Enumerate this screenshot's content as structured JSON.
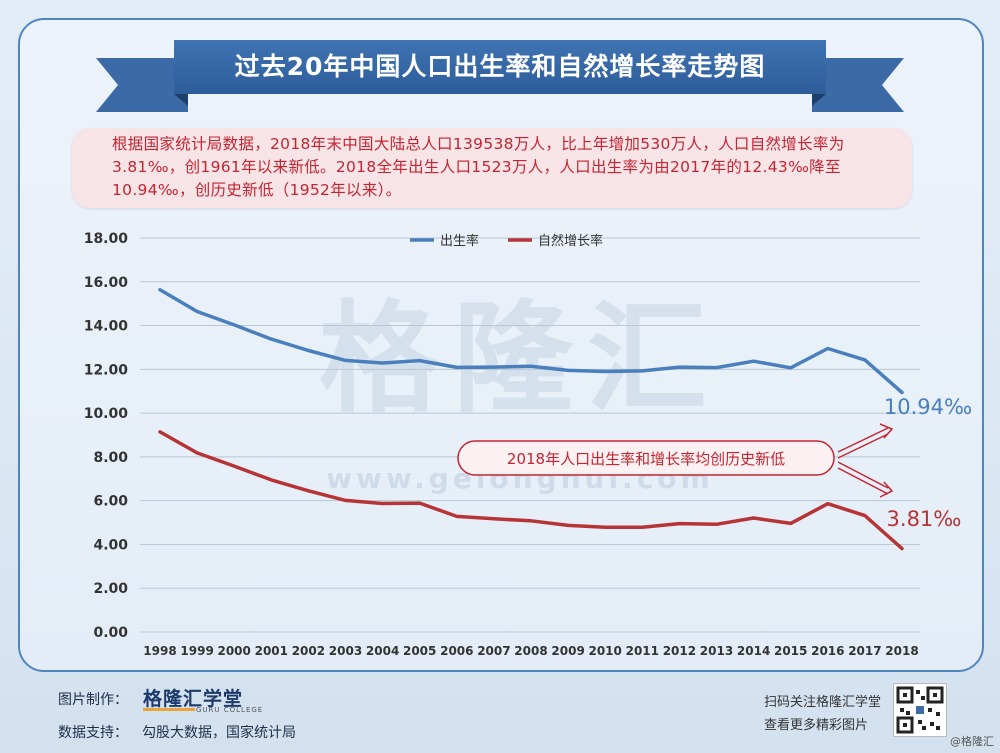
{
  "title": "过去20年中国人口出生率和自然增长率走势图",
  "intro_text": "根据国家统计局数据，2018年末中国大陆总人口139538万人，比上年增加530万人，人口自然增长率为3.81‰，创1961年以来新低。2018全年出生人口1523万人，人口出生率为由2017年的12.43‰降至10.94‰，创历史新低（1952年以来）。",
  "watermark_brand": "格隆汇",
  "watermark_url": "www.gelonghui.com",
  "callout_text": "2018年人口出生率和增长率均创历史新低",
  "end_labels": {
    "birth": "10.94‰",
    "growth": "3.81‰"
  },
  "footer": {
    "made_by_label": "图片制作：",
    "brand_name": "格隆汇学堂",
    "brand_sub": "GURU COLLEGE",
    "data_support_label": "数据支持：",
    "data_support_value": "勾股大数据，国家统计局",
    "qr_line1": "扫码关注格隆汇学堂",
    "qr_line2": "查看更多精彩图片"
  },
  "corner_watermark": "@格隆汇",
  "colors": {
    "birth": "#4a7fbe",
    "growth": "#b63436",
    "accent": "#2e5d99"
  },
  "chart_data": {
    "type": "line",
    "title": "过去20年中国人口出生率和自然增长率走势图",
    "x": [
      "1998",
      "1999",
      "2000",
      "2001",
      "2002",
      "2003",
      "2004",
      "2005",
      "2006",
      "2007",
      "2008",
      "2009",
      "2010",
      "2011",
      "2012",
      "2013",
      "2014",
      "2015",
      "2016",
      "2017",
      "2018"
    ],
    "ylim": [
      0,
      18
    ],
    "yticks": [
      "0.00",
      "2.00",
      "4.00",
      "6.00",
      "8.00",
      "10.00",
      "12.00",
      "14.00",
      "16.00",
      "18.00"
    ],
    "grid": true,
    "legend_position": "top-center",
    "series": [
      {
        "name": "出生率",
        "values": [
          15.64,
          14.64,
          14.03,
          13.38,
          12.86,
          12.41,
          12.29,
          12.4,
          12.09,
          12.1,
          12.14,
          11.95,
          11.9,
          11.93,
          12.1,
          12.08,
          12.37,
          12.07,
          12.95,
          12.43,
          10.94
        ]
      },
      {
        "name": "自然增长率",
        "values": [
          9.14,
          8.18,
          7.58,
          6.95,
          6.45,
          6.01,
          5.87,
          5.89,
          5.28,
          5.17,
          5.08,
          4.87,
          4.79,
          4.79,
          4.95,
          4.92,
          5.21,
          4.96,
          5.86,
          5.32,
          3.81
        ]
      }
    ]
  }
}
